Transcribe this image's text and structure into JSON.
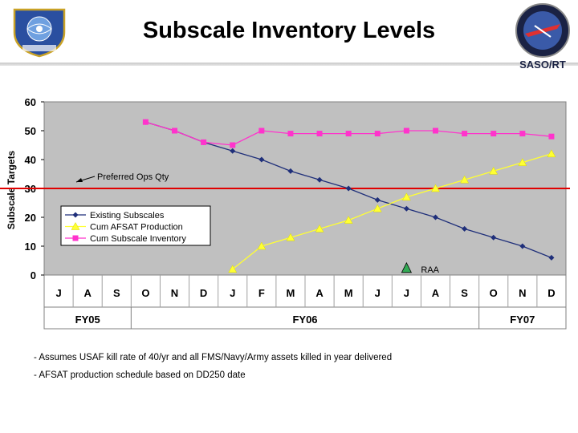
{
  "title": "Subscale Inventory Levels",
  "logo_right_text": "SASO/RT",
  "notes": [
    "- Assumes USAF kill rate of 40/yr and all FMS/Navy/Army assets killed in year delivered",
    "- AFSAT production schedule based on DD250 date"
  ],
  "colors": {
    "existing": "#1f2f7a",
    "afsat": "#ffff33",
    "inventory": "#ff33cc",
    "target_line": "#e00000",
    "plot_bg": "#c0c0c0",
    "raa_marker": "#33aa55"
  },
  "chart_data": {
    "type": "line",
    "ylabel": "Subscale Targets",
    "ylim": [
      0,
      60
    ],
    "yticks": [
      0,
      10,
      20,
      30,
      40,
      50,
      60
    ],
    "categories": [
      "J",
      "A",
      "S",
      "O",
      "N",
      "D",
      "J",
      "F",
      "M",
      "A",
      "M",
      "J",
      "J",
      "A",
      "S",
      "O",
      "N",
      "D"
    ],
    "fiscal_years": [
      {
        "label": "FY05",
        "from": 0,
        "to": 3
      },
      {
        "label": "FY06",
        "from": 3,
        "to": 15
      },
      {
        "label": "FY07",
        "from": 15,
        "to": 18
      }
    ],
    "grid": false,
    "legend_position": "middle-left",
    "series": [
      {
        "name": "Existing Subscales",
        "marker": "diamond",
        "color_key": "existing",
        "values": [
          null,
          null,
          null,
          53,
          50,
          46,
          43,
          40,
          36,
          33,
          30,
          26,
          23,
          20,
          16,
          13,
          10,
          6
        ]
      },
      {
        "name": "Cum AFSAT Production",
        "marker": "triangle",
        "color_key": "afsat",
        "values": [
          null,
          null,
          null,
          null,
          null,
          null,
          2,
          10,
          13,
          16,
          19,
          23,
          27,
          30,
          33,
          36,
          39,
          42
        ]
      },
      {
        "name": "Cum Subscale Inventory",
        "marker": "square",
        "color_key": "inventory",
        "values": [
          null,
          null,
          null,
          53,
          50,
          46,
          45,
          50,
          49,
          49,
          49,
          49,
          50,
          50,
          49,
          49,
          49,
          48
        ]
      }
    ],
    "reference_line": {
      "y": 30,
      "label": "Preferred Ops Qty"
    },
    "annotation": {
      "label": "RAA",
      "x_index": 12.5,
      "y": 2
    }
  }
}
